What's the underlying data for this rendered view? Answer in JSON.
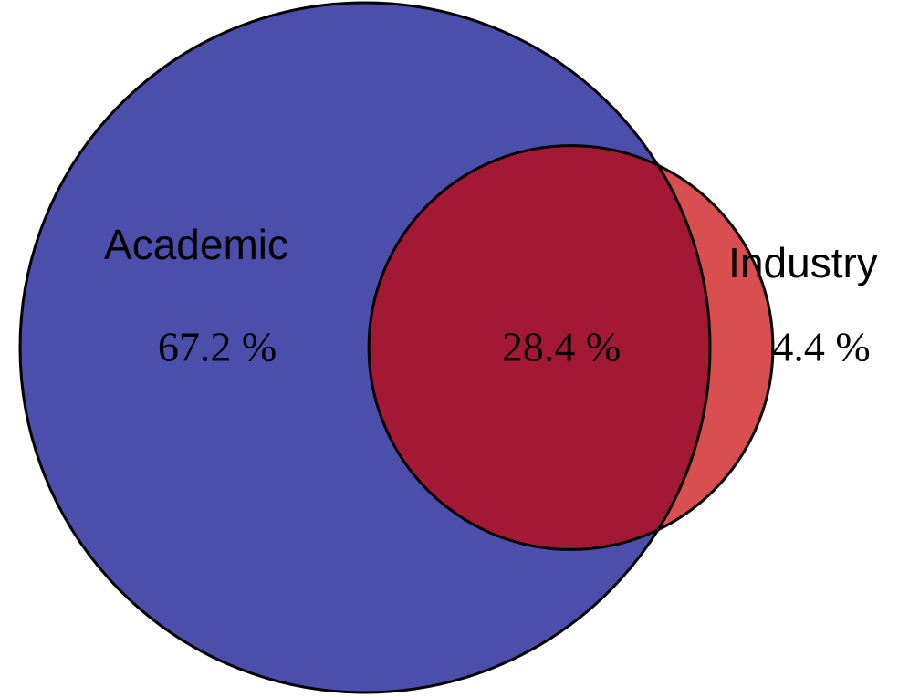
{
  "chart_data": {
    "type": "venn",
    "sets": [
      {
        "name": "Academic",
        "color": "#4b4fab"
      },
      {
        "name": "Industry",
        "color": "#d94f50"
      }
    ],
    "overlap_color": "#a31834",
    "values": [
      67.2,
      28.4,
      4.4
    ],
    "value_labels": [
      "67.2 %",
      "28.4 %",
      "4.4 %"
    ]
  }
}
